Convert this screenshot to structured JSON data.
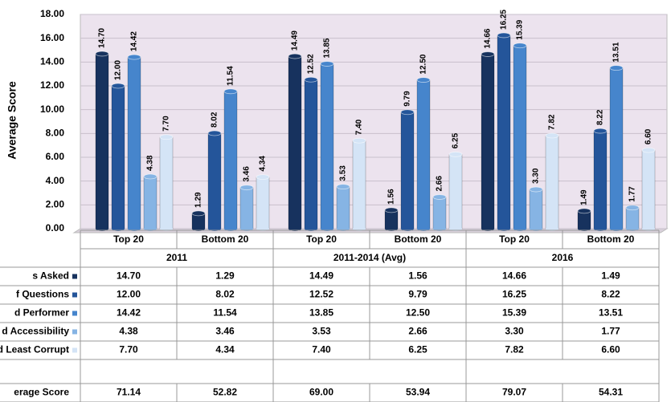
{
  "chart_data": {
    "type": "bar",
    "y_label": "Average Score",
    "categories": [
      "Top 20",
      "Bottom 20",
      "Top 20",
      "Bottom 20",
      "Top 20",
      "Bottom 20"
    ],
    "groups": [
      "2011",
      "2011-2014 (Avg)",
      "2016"
    ],
    "series": [
      {
        "name": "s Asked",
        "color": "#17325e",
        "values": [
          14.7,
          1.29,
          14.49,
          1.56,
          14.66,
          1.49
        ],
        "value_labels": [
          "14.70",
          "1.29",
          "14.49",
          "1.56",
          "14.66",
          "1.49"
        ]
      },
      {
        "name": "f Questions",
        "color": "#24559a",
        "values": [
          12.0,
          8.02,
          12.52,
          9.79,
          16.25,
          8.22
        ],
        "value_labels": [
          "12.00",
          "8.02",
          "12.52",
          "9.79",
          "16.25",
          "8.22"
        ]
      },
      {
        "name": "d Performer",
        "color": "#4685cc",
        "values": [
          14.42,
          11.54,
          13.85,
          12.5,
          15.39,
          13.51
        ],
        "value_labels": [
          "14.42",
          "11.54",
          "13.85",
          "12.50",
          "15.39",
          "13.51"
        ]
      },
      {
        "name": "d Accessibility",
        "color": "#86b4e4",
        "values": [
          4.38,
          3.46,
          3.53,
          2.66,
          3.3,
          1.77
        ],
        "value_labels": [
          "4.38",
          "3.46",
          "3.53",
          "2.66",
          "3.30",
          "1.77"
        ]
      },
      {
        "name": "d Least Corrupt",
        "color": "#d4e4f6",
        "values": [
          7.7,
          4.34,
          7.4,
          6.25,
          7.82,
          6.6
        ],
        "value_labels": [
          "7.70",
          "4.34",
          "7.40",
          "6.25",
          "7.82",
          "6.60"
        ]
      }
    ],
    "total": {
      "name": "erage Score",
      "values": [
        71.14,
        52.82,
        69.0,
        53.94,
        79.07,
        54.31
      ],
      "value_labels": [
        "71.14",
        "52.82",
        "69.00",
        "53.94",
        "79.07",
        "54.31"
      ]
    },
    "ylim": [
      0,
      18
    ],
    "yticks": [
      {
        "value": 0,
        "label": "0.00"
      },
      {
        "value": 2,
        "label": "2.00"
      },
      {
        "value": 4,
        "label": "4.00"
      },
      {
        "value": 6,
        "label": "6.00"
      },
      {
        "value": 8,
        "label": "8.00"
      },
      {
        "value": 10,
        "label": "10.00"
      },
      {
        "value": 12,
        "label": "12.00"
      },
      {
        "value": 14,
        "label": "14.00"
      },
      {
        "value": 16,
        "label": "16.00"
      },
      {
        "value": 18,
        "label": "18.00"
      }
    ],
    "grid": true
  }
}
